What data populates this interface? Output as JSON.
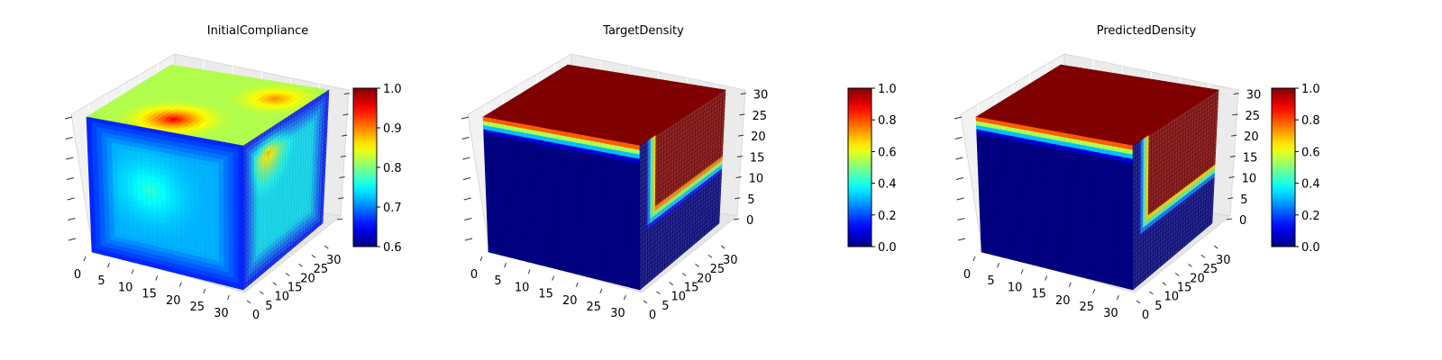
{
  "chart_data": [
    {
      "type": "heatmap",
      "subtype": "3d-voxel-cube",
      "title": "InitialCompliance",
      "colormap": "jet",
      "color_range": [
        0.6,
        1.0
      ],
      "colorbar_ticks": [
        "0.6",
        "0.7",
        "0.8",
        "0.9",
        "1.0"
      ],
      "x_ticks": [
        "0",
        "5",
        "10",
        "15",
        "20",
        "25",
        "30"
      ],
      "y_ticks": [
        "0",
        "5",
        "10",
        "15",
        "20",
        "25",
        "30"
      ],
      "z_ticks": [],
      "grid": true,
      "faces": {
        "top": {
          "base": 0.82,
          "hot_spots": [
            {
              "u": 0.45,
              "v": 0.2,
              "value": 0.96,
              "radius": 0.35
            },
            {
              "u": 0.8,
              "v": 0.75,
              "value": 0.9,
              "radius": 0.3
            }
          ]
        },
        "front": {
          "base": 0.72,
          "hot_spots": [
            {
              "u": 0.4,
              "v": 0.45,
              "value": 0.77,
              "radius": 0.4
            }
          ],
          "cold_edges": 0.66
        },
        "side": {
          "base": 0.74,
          "hot_spots": [
            {
              "u": 0.3,
              "v": 0.15,
              "value": 0.9,
              "radius": 0.35
            }
          ],
          "cold_edges": 0.65
        }
      }
    },
    {
      "type": "heatmap",
      "subtype": "3d-voxel-cube",
      "title": "TargetDensity",
      "colormap": "jet",
      "color_range": [
        0.0,
        1.0
      ],
      "colorbar_ticks": [
        "0.0",
        "0.2",
        "0.4",
        "0.6",
        "0.8",
        "1.0"
      ],
      "x_ticks": [
        "0",
        "5",
        "10",
        "15",
        "20",
        "25",
        "30"
      ],
      "y_ticks": [
        "0",
        "5",
        "10",
        "15",
        "20",
        "25",
        "30"
      ],
      "z_ticks": [
        "0",
        "5",
        "10",
        "15",
        "20",
        "25",
        "30"
      ],
      "grid": true,
      "faces": {
        "top": {
          "base": 1.0
        },
        "front": {
          "base": 0.0,
          "top_band": 0.12
        },
        "side": {
          "base": 0.0,
          "solid_region": {
            "u_from": 0.2,
            "v_to": 0.5
          }
        }
      }
    },
    {
      "type": "heatmap",
      "subtype": "3d-voxel-cube",
      "title": "PredictedDensity",
      "colormap": "jet",
      "color_range": [
        0.0,
        1.0
      ],
      "colorbar_ticks": [
        "0.0",
        "0.2",
        "0.4",
        "0.6",
        "0.8",
        "1.0"
      ],
      "x_ticks": [
        "0",
        "5",
        "10",
        "15",
        "20",
        "25",
        "30"
      ],
      "y_ticks": [
        "0",
        "5",
        "10",
        "15",
        "20",
        "25",
        "30"
      ],
      "z_ticks": [
        "0",
        "5",
        "10",
        "15",
        "20",
        "25",
        "30"
      ],
      "grid": true,
      "faces": {
        "top": {
          "base": 1.0
        },
        "front": {
          "base": 0.0,
          "top_band": 0.12
        },
        "side": {
          "base": 0.0,
          "solid_region": {
            "u_from": 0.2,
            "v_to": 0.55
          }
        }
      }
    }
  ]
}
